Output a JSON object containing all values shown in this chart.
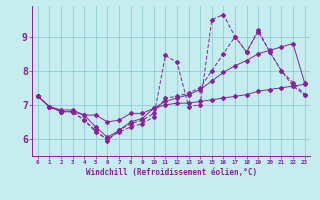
{
  "xlabel": "Windchill (Refroidissement éolien,°C)",
  "background_color": "#c5edf0",
  "grid_color": "#90ccd4",
  "line_color": "#882299",
  "xlim": [
    -0.5,
    23.5
  ],
  "ylim": [
    5.5,
    9.9
  ],
  "xticks": [
    0,
    1,
    2,
    3,
    4,
    5,
    6,
    7,
    8,
    9,
    10,
    11,
    12,
    13,
    14,
    15,
    16,
    17,
    18,
    19,
    20,
    21,
    22,
    23
  ],
  "yticks": [
    6,
    7,
    8,
    9
  ],
  "lines": [
    {
      "x": [
        0,
        1,
        2,
        3,
        4,
        5,
        6,
        7,
        8,
        9,
        10,
        11,
        12,
        13,
        14,
        15,
        16,
        17,
        18,
        19,
        20,
        21,
        22,
        23
      ],
      "y": [
        7.25,
        6.95,
        6.85,
        6.85,
        6.7,
        6.35,
        6.05,
        6.25,
        6.5,
        6.6,
        6.9,
        7.0,
        7.05,
        7.05,
        7.1,
        7.15,
        7.2,
        7.25,
        7.3,
        7.4,
        7.45,
        7.5,
        7.55,
        7.6
      ],
      "style": "-",
      "marker": "D",
      "markersize": 2
    },
    {
      "x": [
        0,
        1,
        2,
        3,
        4,
        5,
        6,
        7,
        8,
        9,
        10,
        11,
        12,
        13,
        14,
        15,
        16,
        17,
        18,
        19,
        20,
        21,
        22,
        23
      ],
      "y": [
        7.25,
        6.95,
        6.8,
        6.8,
        6.7,
        6.7,
        6.5,
        6.55,
        6.75,
        6.75,
        6.9,
        7.1,
        7.2,
        7.3,
        7.45,
        7.7,
        7.95,
        8.15,
        8.3,
        8.5,
        8.6,
        8.7,
        8.8,
        7.65
      ],
      "style": "-",
      "marker": "D",
      "markersize": 2
    },
    {
      "x": [
        0,
        1,
        2,
        3,
        4,
        5,
        6,
        7,
        8,
        9,
        10,
        11,
        12,
        13,
        14,
        15,
        16,
        17,
        18,
        19,
        20,
        21,
        22,
        23
      ],
      "y": [
        7.25,
        6.95,
        6.8,
        6.8,
        6.55,
        6.2,
        6.0,
        6.2,
        6.35,
        6.45,
        6.65,
        8.45,
        8.25,
        6.95,
        7.0,
        9.5,
        9.65,
        9.0,
        8.55,
        9.15,
        8.55,
        8.0,
        7.55,
        7.3
      ],
      "style": "--",
      "marker": "D",
      "markersize": 2
    },
    {
      "x": [
        0,
        1,
        2,
        3,
        4,
        5,
        6,
        7,
        8,
        9,
        10,
        11,
        12,
        13,
        14,
        15,
        16,
        17,
        18,
        19,
        20,
        21,
        22,
        23
      ],
      "y": [
        7.25,
        6.95,
        6.8,
        6.8,
        6.55,
        6.25,
        5.95,
        6.25,
        6.45,
        6.55,
        6.75,
        7.2,
        7.25,
        7.35,
        7.5,
        8.0,
        8.5,
        9.0,
        8.55,
        9.2,
        8.55,
        8.0,
        7.65,
        7.3
      ],
      "style": "--",
      "marker": "D",
      "markersize": 2
    }
  ],
  "figsize": [
    3.2,
    2.0
  ],
  "dpi": 100
}
